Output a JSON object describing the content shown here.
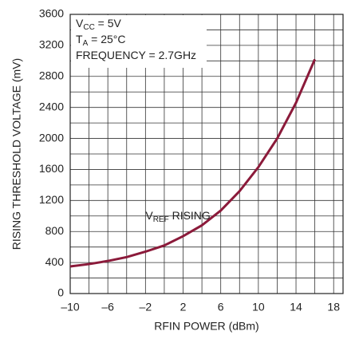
{
  "chart_data": {
    "type": "line",
    "x_label": "RFIN POWER (dBm)",
    "y_label": "RISING THRESHOLD VOLTAGE (mV)",
    "conditions": [
      {
        "main": "V",
        "sub": "CC",
        "rest": " = 5V"
      },
      {
        "main": "T",
        "sub": "A",
        "rest": " = 25°C"
      },
      {
        "main": "FREQUENCY = 2.7GHz"
      }
    ],
    "curve_label": {
      "main": "V",
      "sub": "REF",
      "rest": " RISING"
    },
    "x": [
      -10,
      -8,
      -6,
      -4,
      -2,
      0,
      2,
      4,
      6,
      8,
      10,
      12,
      14,
      16
    ],
    "series": [
      {
        "color": "#8b1a3a",
        "values": [
          350,
          380,
          420,
          470,
          540,
          620,
          740,
          880,
          1070,
          1320,
          1630,
          2000,
          2460,
          3020
        ]
      }
    ],
    "xlim": [
      -10,
      19
    ],
    "xticks": [
      {
        "value": -10,
        "label": "–10"
      },
      {
        "value": -6,
        "label": "–6"
      },
      {
        "value": -2,
        "label": "–2"
      },
      2,
      6,
      10,
      14,
      18
    ],
    "ylim": [
      0,
      3600
    ],
    "yticks": [
      0,
      400,
      800,
      1200,
      1600,
      2000,
      2400,
      2800,
      3200,
      3600
    ],
    "grid": true,
    "minor_grid": true
  }
}
